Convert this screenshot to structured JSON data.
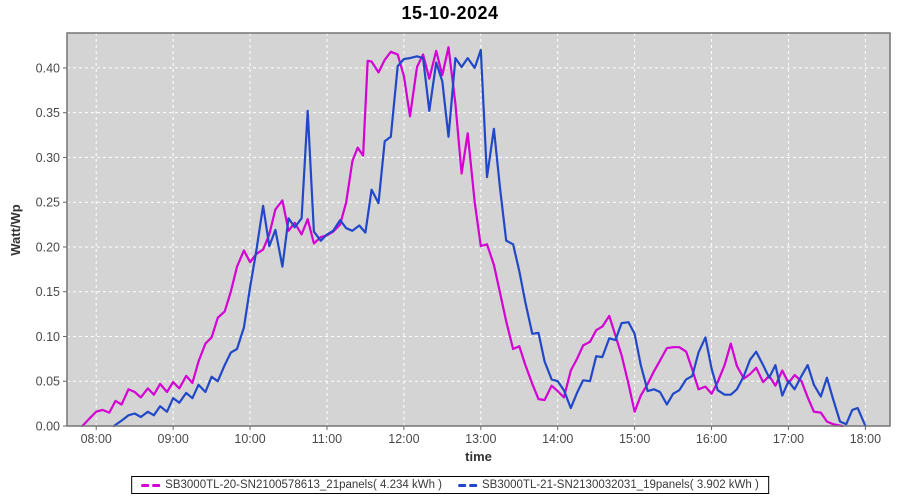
{
  "title": "15-10-2024",
  "axes": {
    "x_label": "time",
    "y_label": "Watt/Wp",
    "x_ticks": [
      "08:00",
      "09:00",
      "10:00",
      "11:00",
      "12:00",
      "13:00",
      "14:00",
      "15:00",
      "16:00",
      "17:00",
      "18:00"
    ],
    "y_ticks": [
      "0.00",
      "0.05",
      "0.10",
      "0.15",
      "0.20",
      "0.25",
      "0.30",
      "0.35",
      "0.40"
    ]
  },
  "legend": [
    {
      "label": "SB3000TL-20-SN2100578613_21panels( 4.234 kWh )",
      "color": "#d400d4"
    },
    {
      "label": "SB3000TL-21-SN2130032031_19panels( 3.902 kWh )",
      "color": "#2148c8"
    }
  ],
  "colors": {
    "plot_bg": "#d4d4d4",
    "grid": "#ffffff",
    "plot_border": "#757575",
    "tick": "#666666",
    "tick_label": "#4a4a4a",
    "series_1": "#d400d4",
    "series_2": "#2148c8"
  },
  "chart_data": {
    "type": "line",
    "title": "15-10-2024",
    "xlabel": "time",
    "ylabel": "Watt/Wp",
    "x_unit": "hour of day, decimal",
    "xlim": [
      7.62,
      18.32
    ],
    "ylim": [
      0,
      0.439
    ],
    "x_tick_hours": [
      8,
      9,
      10,
      11,
      12,
      13,
      14,
      15,
      16,
      17,
      18
    ],
    "y_tick_values": [
      0,
      0.05,
      0.1,
      0.15,
      0.2,
      0.25,
      0.3,
      0.35,
      0.4
    ],
    "grid": "white dashed, both axes",
    "legend_position": "bottom",
    "series": [
      {
        "name": "SB3000TL-20-SN2100578613_21panels( 4.234 kWh )",
        "color": "#d400d4",
        "points": [
          [
            7.82,
            0
          ],
          [
            7.92,
            0.009
          ],
          [
            8.0,
            0.016
          ],
          [
            8.08,
            0.018
          ],
          [
            8.17,
            0.015
          ],
          [
            8.25,
            0.028
          ],
          [
            8.33,
            0.024
          ],
          [
            8.42,
            0.041
          ],
          [
            8.5,
            0.038
          ],
          [
            8.58,
            0.032
          ],
          [
            8.67,
            0.042
          ],
          [
            8.75,
            0.035
          ],
          [
            8.83,
            0.047
          ],
          [
            8.92,
            0.038
          ],
          [
            9.0,
            0.049
          ],
          [
            9.08,
            0.042
          ],
          [
            9.17,
            0.056
          ],
          [
            9.25,
            0.048
          ],
          [
            9.33,
            0.072
          ],
          [
            9.42,
            0.092
          ],
          [
            9.5,
            0.099
          ],
          [
            9.58,
            0.121
          ],
          [
            9.67,
            0.128
          ],
          [
            9.75,
            0.15
          ],
          [
            9.83,
            0.178
          ],
          [
            9.92,
            0.196
          ],
          [
            10.0,
            0.183
          ],
          [
            10.08,
            0.192
          ],
          [
            10.17,
            0.197
          ],
          [
            10.25,
            0.214
          ],
          [
            10.33,
            0.242
          ],
          [
            10.42,
            0.252
          ],
          [
            10.5,
            0.218
          ],
          [
            10.58,
            0.227
          ],
          [
            10.67,
            0.214
          ],
          [
            10.75,
            0.231
          ],
          [
            10.83,
            0.204
          ],
          [
            10.92,
            0.211
          ],
          [
            11.0,
            0.213
          ],
          [
            11.08,
            0.217
          ],
          [
            11.17,
            0.225
          ],
          [
            11.25,
            0.25
          ],
          [
            11.33,
            0.296
          ],
          [
            11.4,
            0.311
          ],
          [
            11.47,
            0.302
          ],
          [
            11.53,
            0.408
          ],
          [
            11.58,
            0.407
          ],
          [
            11.67,
            0.395
          ],
          [
            11.75,
            0.409
          ],
          [
            11.83,
            0.418
          ],
          [
            11.92,
            0.415
          ],
          [
            12.0,
            0.391
          ],
          [
            12.08,
            0.346
          ],
          [
            12.17,
            0.401
          ],
          [
            12.25,
            0.415
          ],
          [
            12.33,
            0.388
          ],
          [
            12.42,
            0.419
          ],
          [
            12.5,
            0.392
          ],
          [
            12.58,
            0.423
          ],
          [
            12.67,
            0.36
          ],
          [
            12.75,
            0.282
          ],
          [
            12.83,
            0.327
          ],
          [
            12.92,
            0.25
          ],
          [
            13.0,
            0.201
          ],
          [
            13.08,
            0.203
          ],
          [
            13.17,
            0.18
          ],
          [
            13.25,
            0.149
          ],
          [
            13.33,
            0.117
          ],
          [
            13.42,
            0.086
          ],
          [
            13.5,
            0.089
          ],
          [
            13.58,
            0.068
          ],
          [
            13.67,
            0.047
          ],
          [
            13.75,
            0.03
          ],
          [
            13.83,
            0.029
          ],
          [
            13.92,
            0.045
          ],
          [
            14.0,
            0.039
          ],
          [
            14.08,
            0.032
          ],
          [
            14.17,
            0.062
          ],
          [
            14.25,
            0.075
          ],
          [
            14.33,
            0.09
          ],
          [
            14.42,
            0.094
          ],
          [
            14.5,
            0.107
          ],
          [
            14.58,
            0.111
          ],
          [
            14.67,
            0.123
          ],
          [
            14.75,
            0.101
          ],
          [
            14.83,
            0.079
          ],
          [
            14.92,
            0.047
          ],
          [
            15.0,
            0.016
          ],
          [
            15.08,
            0.034
          ],
          [
            15.17,
            0.047
          ],
          [
            15.25,
            0.061
          ],
          [
            15.33,
            0.073
          ],
          [
            15.42,
            0.087
          ],
          [
            15.5,
            0.088
          ],
          [
            15.58,
            0.088
          ],
          [
            15.67,
            0.083
          ],
          [
            15.75,
            0.063
          ],
          [
            15.83,
            0.041
          ],
          [
            15.92,
            0.044
          ],
          [
            16.0,
            0.036
          ],
          [
            16.08,
            0.049
          ],
          [
            16.17,
            0.068
          ],
          [
            16.25,
            0.092
          ],
          [
            16.33,
            0.067
          ],
          [
            16.42,
            0.053
          ],
          [
            16.5,
            0.058
          ],
          [
            16.58,
            0.065
          ],
          [
            16.67,
            0.049
          ],
          [
            16.75,
            0.056
          ],
          [
            16.83,
            0.045
          ],
          [
            16.92,
            0.062
          ],
          [
            17.0,
            0.048
          ],
          [
            17.08,
            0.057
          ],
          [
            17.17,
            0.05
          ],
          [
            17.25,
            0.032
          ],
          [
            17.33,
            0.016
          ],
          [
            17.42,
            0.015
          ],
          [
            17.5,
            0.005
          ],
          [
            17.58,
            0.002
          ],
          [
            17.7,
            0
          ]
        ]
      },
      {
        "name": "SB3000TL-21-SN2130032031_19panels( 3.902 kWh )",
        "color": "#2148c8",
        "points": [
          [
            8.23,
            0
          ],
          [
            8.33,
            0.006
          ],
          [
            8.42,
            0.012
          ],
          [
            8.5,
            0.014
          ],
          [
            8.58,
            0.01
          ],
          [
            8.67,
            0.016
          ],
          [
            8.75,
            0.012
          ],
          [
            8.83,
            0.022
          ],
          [
            8.92,
            0.016
          ],
          [
            9.0,
            0.031
          ],
          [
            9.08,
            0.026
          ],
          [
            9.17,
            0.037
          ],
          [
            9.25,
            0.031
          ],
          [
            9.33,
            0.046
          ],
          [
            9.42,
            0.038
          ],
          [
            9.5,
            0.055
          ],
          [
            9.58,
            0.05
          ],
          [
            9.67,
            0.068
          ],
          [
            9.75,
            0.082
          ],
          [
            9.83,
            0.086
          ],
          [
            9.92,
            0.11
          ],
          [
            10.0,
            0.155
          ],
          [
            10.08,
            0.195
          ],
          [
            10.17,
            0.246
          ],
          [
            10.25,
            0.201
          ],
          [
            10.33,
            0.219
          ],
          [
            10.42,
            0.178
          ],
          [
            10.5,
            0.232
          ],
          [
            10.58,
            0.222
          ],
          [
            10.67,
            0.232
          ],
          [
            10.75,
            0.352
          ],
          [
            10.83,
            0.217
          ],
          [
            10.92,
            0.207
          ],
          [
            11.0,
            0.214
          ],
          [
            11.08,
            0.218
          ],
          [
            11.17,
            0.23
          ],
          [
            11.25,
            0.221
          ],
          [
            11.33,
            0.218
          ],
          [
            11.42,
            0.224
          ],
          [
            11.5,
            0.216
          ],
          [
            11.58,
            0.264
          ],
          [
            11.67,
            0.249
          ],
          [
            11.75,
            0.318
          ],
          [
            11.83,
            0.323
          ],
          [
            11.92,
            0.402
          ],
          [
            12.0,
            0.41
          ],
          [
            12.08,
            0.411
          ],
          [
            12.17,
            0.413
          ],
          [
            12.25,
            0.411
          ],
          [
            12.33,
            0.352
          ],
          [
            12.42,
            0.406
          ],
          [
            12.5,
            0.385
          ],
          [
            12.58,
            0.323
          ],
          [
            12.67,
            0.411
          ],
          [
            12.75,
            0.401
          ],
          [
            12.83,
            0.411
          ],
          [
            12.92,
            0.4
          ],
          [
            13.0,
            0.42
          ],
          [
            13.08,
            0.278
          ],
          [
            13.17,
            0.332
          ],
          [
            13.25,
            0.266
          ],
          [
            13.33,
            0.207
          ],
          [
            13.42,
            0.203
          ],
          [
            13.5,
            0.173
          ],
          [
            13.58,
            0.138
          ],
          [
            13.67,
            0.103
          ],
          [
            13.75,
            0.104
          ],
          [
            13.83,
            0.072
          ],
          [
            13.92,
            0.052
          ],
          [
            14.0,
            0.05
          ],
          [
            14.08,
            0.04
          ],
          [
            14.17,
            0.02
          ],
          [
            14.25,
            0.037
          ],
          [
            14.33,
            0.051
          ],
          [
            14.42,
            0.05
          ],
          [
            14.5,
            0.078
          ],
          [
            14.58,
            0.077
          ],
          [
            14.67,
            0.098
          ],
          [
            14.75,
            0.096
          ],
          [
            14.83,
            0.115
          ],
          [
            14.92,
            0.116
          ],
          [
            15.0,
            0.103
          ],
          [
            15.08,
            0.068
          ],
          [
            15.17,
            0.039
          ],
          [
            15.25,
            0.041
          ],
          [
            15.33,
            0.038
          ],
          [
            15.42,
            0.024
          ],
          [
            15.5,
            0.036
          ],
          [
            15.58,
            0.04
          ],
          [
            15.67,
            0.052
          ],
          [
            15.75,
            0.056
          ],
          [
            15.83,
            0.082
          ],
          [
            15.92,
            0.099
          ],
          [
            16.0,
            0.064
          ],
          [
            16.08,
            0.04
          ],
          [
            16.17,
            0.035
          ],
          [
            16.25,
            0.035
          ],
          [
            16.33,
            0.041
          ],
          [
            16.42,
            0.056
          ],
          [
            16.5,
            0.074
          ],
          [
            16.58,
            0.083
          ],
          [
            16.67,
            0.068
          ],
          [
            16.75,
            0.054
          ],
          [
            16.83,
            0.068
          ],
          [
            16.92,
            0.034
          ],
          [
            17.0,
            0.05
          ],
          [
            17.08,
            0.041
          ],
          [
            17.17,
            0.056
          ],
          [
            17.25,
            0.068
          ],
          [
            17.33,
            0.046
          ],
          [
            17.42,
            0.033
          ],
          [
            17.5,
            0.054
          ],
          [
            17.58,
            0.03
          ],
          [
            17.67,
            0.005
          ],
          [
            17.75,
            0.002
          ],
          [
            17.83,
            0.018
          ],
          [
            17.9,
            0.02
          ],
          [
            18.0,
            0
          ]
        ]
      }
    ]
  }
}
